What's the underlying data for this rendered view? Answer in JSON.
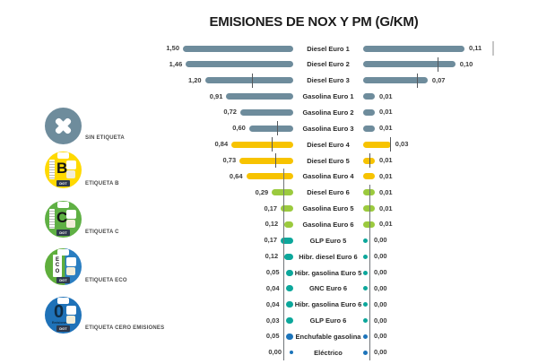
{
  "title": "EMISIONES DE NOX Y PM (G/KM)",
  "badges": [
    {
      "id": "sin",
      "label": "SIN ETIQUETA"
    },
    {
      "id": "b",
      "label": "ETIQUETA B",
      "letter": "B",
      "dgt": "DGT"
    },
    {
      "id": "c",
      "label": "ETIQUETA C",
      "letter": "C",
      "dgt": "DGT"
    },
    {
      "id": "eco",
      "label": "ETIQUETA ECO",
      "letters": [
        "E",
        "C",
        "O"
      ],
      "dgt": "DGT"
    },
    {
      "id": "cero",
      "label": "ETIQUETA CERO EMISIONES",
      "letter": "0",
      "sub": "Emisiones",
      "dgt": "DGT"
    }
  ],
  "chart_data": {
    "type": "bar",
    "variant": "mirrored-horizontal (NOx bars grow left, PM bars grow right)",
    "title": "EMISIONES DE NOX Y PM (G/KM)",
    "units": "g/km",
    "decimal_format": "comma",
    "legend_position": "left (DGT environmental badges)",
    "palette": {
      "sin": "#6E8C9C",
      "b": "#F7C300",
      "c": "#9BCA3E",
      "eco": "#0CA79B",
      "cero": "#1C74BA"
    },
    "axis": {
      "nox_label": "NOX",
      "pm_label": "PM",
      "nox_max": 1.5,
      "pm_max": 0.14
    },
    "rows": [
      {
        "label": "Diesel Euro 1",
        "nox": 1.5,
        "pm": 0.11,
        "cat": "sin"
      },
      {
        "label": "Diesel Euro 2",
        "nox": 1.46,
        "pm": 0.1,
        "cat": "sin"
      },
      {
        "label": "Diesel Euro 3",
        "nox": 1.2,
        "pm": 0.07,
        "cat": "sin"
      },
      {
        "label": "Gasolina Euro 1",
        "nox": 0.91,
        "pm": 0.01,
        "cat": "sin"
      },
      {
        "label": "Gasolina Euro 2",
        "nox": 0.72,
        "pm": 0.01,
        "cat": "sin"
      },
      {
        "label": "Gasolina Euro 3",
        "nox": 0.6,
        "pm": 0.01,
        "cat": "sin"
      },
      {
        "label": "Diesel Euro 4",
        "nox": 0.84,
        "pm": 0.03,
        "cat": "b"
      },
      {
        "label": "Diesel Euro 5",
        "nox": 0.73,
        "pm": 0.01,
        "cat": "b"
      },
      {
        "label": "Gasolina Euro 4",
        "nox": 0.64,
        "pm": 0.01,
        "cat": "b"
      },
      {
        "label": "Diesel Euro 6",
        "nox": 0.29,
        "pm": 0.01,
        "cat": "c"
      },
      {
        "label": "Gasolina Euro 5",
        "nox": 0.17,
        "pm": 0.01,
        "cat": "c"
      },
      {
        "label": "Gasolina Euro 6",
        "nox": 0.12,
        "pm": 0.01,
        "cat": "c"
      },
      {
        "label": "GLP Euro 5",
        "nox": 0.17,
        "pm": 0.0,
        "cat": "eco"
      },
      {
        "label": "Hibr. diesel Euro 6",
        "nox": 0.12,
        "pm": 0.0,
        "cat": "eco"
      },
      {
        "label": "Hibr. gasolina Euro 5",
        "nox": 0.05,
        "pm": 0.0,
        "cat": "eco"
      },
      {
        "label": "GNC Euro 6",
        "nox": 0.04,
        "pm": 0.0,
        "cat": "eco"
      },
      {
        "label": "Hibr. gasolina Euro 6",
        "nox": 0.04,
        "pm": 0.0,
        "cat": "eco"
      },
      {
        "label": "GLP Euro 6",
        "nox": 0.03,
        "pm": 0.0,
        "cat": "eco"
      },
      {
        "label": "Enchufable gasolina",
        "nox": 0.05,
        "pm": 0.0,
        "cat": "cero"
      },
      {
        "label": "Eléctrico",
        "nox": 0.0,
        "pm": 0.0,
        "cat": "cero"
      }
    ],
    "limit_ticks": [
      {
        "row": 1,
        "axis": "pm",
        "value": 0.14,
        "light": true
      },
      {
        "row": 2,
        "axis": "pm",
        "value": 0.081
      },
      {
        "row": 3,
        "axis": "nox",
        "value": 0.56
      },
      {
        "row": 3,
        "axis": "pm",
        "value": 0.058
      },
      {
        "row": 6,
        "axis": "nox",
        "value": 0.22
      },
      {
        "row": 7,
        "axis": "nox",
        "value": 0.29
      },
      {
        "row": 7,
        "axis": "pm",
        "value": 0.029
      },
      {
        "row": 8,
        "axis": "nox",
        "value": 0.24
      },
      {
        "row": 8,
        "axis": "pm",
        "value": 0.007
      }
    ],
    "limit_lines": [
      {
        "axis": "nox",
        "value": 0.134,
        "from_row": 9,
        "to_row": 20
      },
      {
        "axis": "pm",
        "value": 0.007,
        "from_row": 10,
        "to_row": 20
      }
    ]
  }
}
